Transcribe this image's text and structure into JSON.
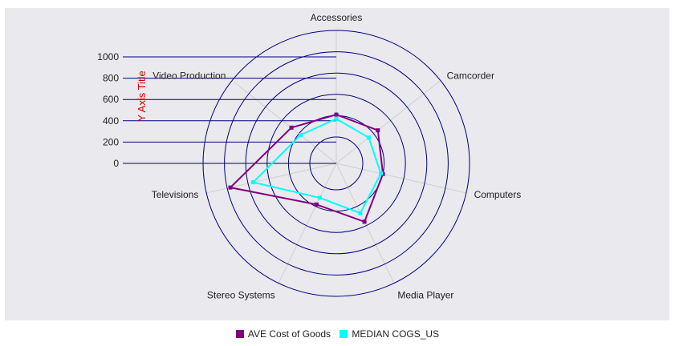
{
  "chart_data": {
    "type": "radar",
    "categories": [
      "Accessories",
      "Camcorder",
      "Computers",
      "Media Player",
      "Stereo Systems",
      "Televisions",
      "Video Production"
    ],
    "series": [
      {
        "name": "AVE Cost of Goods",
        "color": "#800080",
        "values": [
          210,
          250,
          200,
          360,
          180,
          770,
          290
        ]
      },
      {
        "name": "MEDIAN COGS_US",
        "color": "#00ffff",
        "values": [
          170,
          140,
          180,
          270,
          110,
          550,
          180
        ]
      }
    ],
    "rlim": [
      0,
      1000
    ],
    "ticks": [
      "0",
      "200",
      "400",
      "600",
      "800",
      "1000"
    ],
    "ylabel": "Y Axis Title",
    "grid_color": "#000080",
    "spoke_color": "#d0d0d0",
    "legend_position": "bottom"
  }
}
